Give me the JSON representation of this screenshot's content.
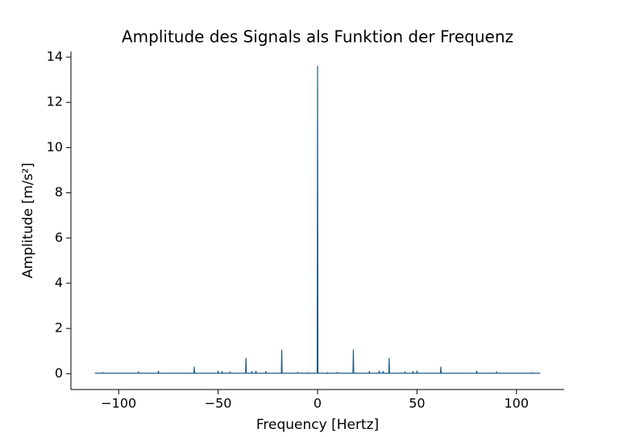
{
  "chart_data": {
    "type": "line",
    "title": "Amplitude des Signals als Funktion der Frequenz",
    "x_label": "Frequency [Hertz]",
    "y_label": "Amplitude [m/s²]",
    "x": [
      -112,
      -108.2,
      -108,
      -107.8,
      -90.2,
      -90,
      -89.8,
      -80.2,
      -80,
      -79.8,
      -62.2,
      -62,
      -61.8,
      -50.2,
      -50,
      -49.8,
      -48.2,
      -48,
      -47.8,
      -44.2,
      -44,
      -43.8,
      -36.2,
      -36,
      -35.8,
      -33.2,
      -33,
      -32.8,
      -31.2,
      -31,
      -30.8,
      -26.2,
      -26,
      -25.8,
      -18.2,
      -18,
      -17.8,
      -10.2,
      -10,
      -9.8,
      -5.2,
      -5,
      -4.8,
      -0.2,
      0,
      0.2,
      4.8,
      5,
      5.2,
      9.8,
      10,
      10.2,
      17.8,
      18,
      18.2,
      25.8,
      26,
      26.2,
      30.8,
      31,
      31.2,
      32.8,
      33,
      33.2,
      35.8,
      36,
      36.2,
      43.8,
      44,
      44.2,
      47.8,
      48,
      48.2,
      49.8,
      50,
      50.2,
      61.8,
      62,
      62.2,
      79.8,
      80,
      80.2,
      89.8,
      90,
      90.2,
      107.8,
      108,
      108.2,
      112
    ],
    "series": [
      {
        "color": "#1f5b88",
        "values": [
          0.02,
          0.02,
          0.05,
          0.02,
          0.02,
          0.08,
          0.02,
          0.02,
          0.12,
          0.02,
          0.02,
          0.3,
          0.02,
          0.02,
          0.12,
          0.02,
          0.02,
          0.1,
          0.02,
          0.02,
          0.08,
          0.02,
          0.02,
          0.68,
          0.02,
          0.02,
          0.1,
          0.02,
          0.02,
          0.12,
          0.02,
          0.02,
          0.1,
          0.02,
          0.02,
          1.05,
          0.02,
          0.02,
          0.06,
          0.02,
          0.02,
          0.05,
          0.02,
          0.02,
          13.6,
          0.02,
          0.02,
          0.05,
          0.02,
          0.02,
          0.06,
          0.02,
          0.02,
          1.05,
          0.02,
          0.02,
          0.1,
          0.02,
          0.02,
          0.12,
          0.02,
          0.02,
          0.1,
          0.02,
          0.02,
          0.68,
          0.02,
          0.02,
          0.08,
          0.02,
          0.02,
          0.1,
          0.02,
          0.02,
          0.12,
          0.02,
          0.02,
          0.3,
          0.02,
          0.02,
          0.12,
          0.02,
          0.02,
          0.08,
          0.02,
          0.02,
          0.05,
          0.02,
          0.02
        ]
      }
    ],
    "xlim": [
      -124,
      124
    ],
    "ylim": [
      -0.7,
      14.25
    ],
    "xticks": [
      {
        "value": -100,
        "label": "−100"
      },
      {
        "value": -50,
        "label": "−50"
      },
      0,
      50,
      100
    ],
    "yticks": [
      0,
      2,
      4,
      6,
      8,
      10,
      12,
      14
    ]
  }
}
